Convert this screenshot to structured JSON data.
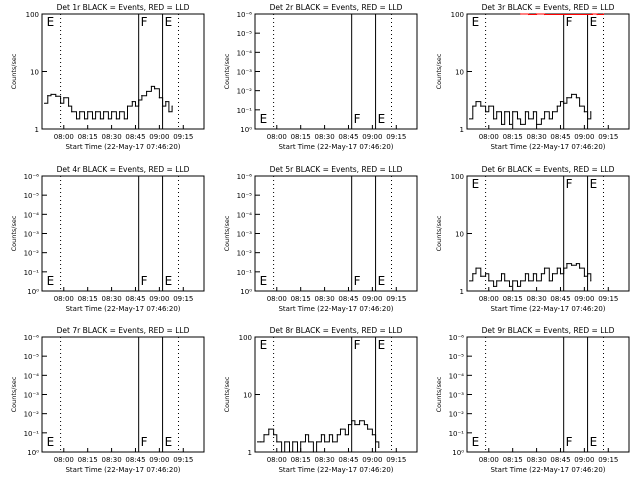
{
  "colors": {
    "background": "#ffffff",
    "events": "#000000",
    "lld": "#ff0000"
  },
  "chart_data": [
    {
      "type": "line",
      "title": "Det 1r BLACK = Events, RED = LLD",
      "xlabel": "Start Time (22-May-17 07:46:20)",
      "ylabel": "Counts/sec",
      "x_ticks": [
        "08:00",
        "08:15",
        "08:30",
        "08:45",
        "09:00",
        "09:15"
      ],
      "y_scale": "log",
      "y_tick_labels": [
        "1",
        "10",
        "100"
      ],
      "ylim": [
        1,
        100
      ],
      "markers": [
        {
          "label": "E",
          "at": "07:48"
        },
        {
          "label": "F",
          "at": "08:47"
        },
        {
          "label": "E",
          "at": "09:02"
        }
      ],
      "series": [
        {
          "color": "#000000",
          "x": [
            "07:48",
            "07:50",
            "07:52",
            "07:55",
            "07:58",
            "08:00",
            "08:03",
            "08:05",
            "08:08",
            "08:10",
            "08:13",
            "08:15",
            "08:18",
            "08:20",
            "08:23",
            "08:25",
            "08:28",
            "08:30",
            "08:33",
            "08:35",
            "08:38",
            "08:40",
            "08:43",
            "08:45",
            "08:47",
            "08:49",
            "08:52",
            "08:55",
            "08:57",
            "09:00",
            "09:02",
            "09:04",
            "09:06",
            "09:08"
          ],
          "y": [
            2.8,
            3.8,
            4.0,
            3.7,
            2.8,
            3.5,
            2.5,
            2.0,
            1.5,
            2.0,
            1.5,
            2.0,
            1.5,
            2.0,
            1.5,
            2.0,
            1.5,
            2.0,
            1.5,
            2.0,
            1.5,
            2.5,
            3.0,
            2.5,
            3.2,
            3.8,
            4.5,
            5.5,
            5.0,
            3.5,
            2.5,
            3.0,
            2.0,
            2.5
          ]
        }
      ]
    },
    {
      "type": "line",
      "title": "Det 2r BLACK = Events, RED = LLD",
      "xlabel": "Start Time (22-May-17 07:46:20)",
      "ylabel": "Counts/sec",
      "x_ticks": [
        "08:00",
        "08:15",
        "08:30",
        "08:45",
        "09:00",
        "09:15"
      ],
      "y_scale": "log",
      "y_tick_labels": [
        "10⁰",
        "10⁻¹",
        "10⁻²",
        "10⁻³",
        "10⁻⁴",
        "10⁻⁵",
        "10⁻⁶"
      ],
      "markers": [
        {
          "label": "E",
          "at": "07:48"
        },
        {
          "label": "F",
          "at": "08:47"
        },
        {
          "label": "E",
          "at": "09:02"
        }
      ],
      "series": []
    },
    {
      "type": "line",
      "title": "Det 3r BLACK = Events, RED = LLD",
      "xlabel": "Start Time (22-May-17 07:46:20)",
      "ylabel": "Counts/sec",
      "x_ticks": [
        "08:00",
        "08:15",
        "08:30",
        "08:45",
        "09:00",
        "09:15"
      ],
      "y_scale": "log",
      "y_tick_labels": [
        "1",
        "10",
        "100"
      ],
      "ylim": [
        1,
        100
      ],
      "markers": [
        {
          "label": "E",
          "at": "07:48"
        },
        {
          "label": "F",
          "at": "08:47"
        },
        {
          "label": "E",
          "at": "09:02"
        }
      ],
      "series": [
        {
          "color": "#000000",
          "x": [
            "07:48",
            "07:50",
            "07:52",
            "07:55",
            "07:58",
            "08:00",
            "08:03",
            "08:05",
            "08:08",
            "08:10",
            "08:13",
            "08:15",
            "08:18",
            "08:20",
            "08:23",
            "08:25",
            "08:28",
            "08:30",
            "08:33",
            "08:35",
            "08:38",
            "08:40",
            "08:43",
            "08:45",
            "08:47",
            "08:49",
            "08:52",
            "08:55",
            "08:57",
            "09:00",
            "09:02",
            "09:04"
          ],
          "y": [
            1.5,
            2.5,
            3.0,
            2.5,
            2.0,
            2.5,
            1.5,
            2.0,
            1.2,
            2.0,
            1.2,
            2.0,
            1.5,
            1.2,
            2.0,
            1.5,
            2.0,
            1.2,
            1.5,
            2.0,
            1.5,
            2.0,
            2.5,
            3.0,
            2.8,
            3.5,
            4.0,
            3.5,
            2.5,
            2.0,
            1.5,
            2.0
          ]
        },
        {
          "color": "#ff0000",
          "x": [
            "08:20",
            "08:25",
            "08:30",
            "08:35",
            "09:05",
            "09:08",
            "09:12"
          ],
          "y": [
            100,
            98,
            100,
            98,
            100,
            98,
            100
          ]
        }
      ]
    },
    {
      "type": "line",
      "title": "Det 4r BLACK = Events, RED = LLD",
      "xlabel": "Start Time (22-May-17 07:46:20)",
      "ylabel": "Counts/sec",
      "x_ticks": [
        "08:00",
        "08:15",
        "08:30",
        "08:45",
        "09:00",
        "09:15"
      ],
      "y_scale": "log",
      "y_tick_labels": [
        "10⁰",
        "10⁻¹",
        "10⁻²",
        "10⁻³",
        "10⁻⁴",
        "10⁻⁵",
        "10⁻⁶"
      ],
      "markers": [
        {
          "label": "E",
          "at": "07:48"
        },
        {
          "label": "F",
          "at": "08:47"
        },
        {
          "label": "E",
          "at": "09:02"
        }
      ],
      "series": []
    },
    {
      "type": "line",
      "title": "Det 5r BLACK = Events, RED = LLD",
      "xlabel": "Start Time (22-May-17 07:46:20)",
      "ylabel": "Counts/sec",
      "x_ticks": [
        "08:00",
        "08:15",
        "08:30",
        "08:45",
        "09:00",
        "09:15"
      ],
      "y_scale": "log",
      "y_tick_labels": [
        "10⁰",
        "10⁻¹",
        "10⁻²",
        "10⁻³",
        "10⁻⁴",
        "10⁻⁵",
        "10⁻⁶"
      ],
      "markers": [
        {
          "label": "E",
          "at": "07:48"
        },
        {
          "label": "F",
          "at": "08:47"
        },
        {
          "label": "E",
          "at": "09:02"
        }
      ],
      "series": []
    },
    {
      "type": "line",
      "title": "Det 6r BLACK = Events, RED = LLD",
      "xlabel": "Start Time (22-May-17 07:46:20)",
      "ylabel": "Counts/sec",
      "x_ticks": [
        "08:00",
        "08:15",
        "08:30",
        "08:45",
        "09:00",
        "09:15"
      ],
      "y_scale": "log",
      "y_tick_labels": [
        "1",
        "10",
        "100"
      ],
      "ylim": [
        1,
        100
      ],
      "markers": [
        {
          "label": "E",
          "at": "07:48"
        },
        {
          "label": "F",
          "at": "08:47"
        },
        {
          "label": "E",
          "at": "09:02"
        }
      ],
      "series": [
        {
          "color": "#000000",
          "x": [
            "07:48",
            "07:50",
            "07:52",
            "07:55",
            "07:58",
            "08:00",
            "08:03",
            "08:05",
            "08:08",
            "08:10",
            "08:13",
            "08:15",
            "08:18",
            "08:20",
            "08:23",
            "08:25",
            "08:28",
            "08:30",
            "08:33",
            "08:35",
            "08:38",
            "08:40",
            "08:43",
            "08:45",
            "08:47",
            "08:49",
            "08:52",
            "08:55",
            "08:57",
            "09:00",
            "09:02",
            "09:04"
          ],
          "y": [
            1.5,
            2.0,
            2.5,
            1.8,
            2.0,
            1.5,
            1.2,
            1.5,
            2.0,
            1.5,
            1.2,
            1.5,
            1.2,
            1.5,
            2.0,
            1.5,
            2.0,
            1.5,
            2.0,
            2.5,
            1.5,
            2.0,
            2.5,
            2.0,
            2.5,
            3.0,
            2.8,
            3.0,
            2.5,
            1.8,
            2.0,
            1.5
          ]
        }
      ]
    },
    {
      "type": "line",
      "title": "Det 7r BLACK = Events, RED = LLD",
      "xlabel": "Start Time (22-May-17 07:46:20)",
      "ylabel": "Counts/sec",
      "x_ticks": [
        "08:00",
        "08:15",
        "08:30",
        "08:45",
        "09:00",
        "09:15"
      ],
      "y_scale": "log",
      "y_tick_labels": [
        "10⁰",
        "10⁻¹",
        "10⁻²",
        "10⁻³",
        "10⁻⁴",
        "10⁻⁵",
        "10⁻⁶"
      ],
      "markers": [
        {
          "label": "E",
          "at": "07:48"
        },
        {
          "label": "F",
          "at": "08:47"
        },
        {
          "label": "E",
          "at": "09:02"
        }
      ],
      "series": []
    },
    {
      "type": "line",
      "title": "Det 8r BLACK = Events, RED = LLD",
      "xlabel": "Start Time (22-May-17 07:46:20)",
      "ylabel": "Counts/sec",
      "x_ticks": [
        "08:00",
        "08:15",
        "08:30",
        "08:45",
        "09:00",
        "09:15"
      ],
      "y_scale": "log",
      "y_tick_labels": [
        "1",
        "10",
        "100"
      ],
      "ylim": [
        1,
        100
      ],
      "markers": [
        {
          "label": "E",
          "at": "07:48"
        },
        {
          "label": "F",
          "at": "08:47"
        },
        {
          "label": "E",
          "at": "09:02"
        }
      ],
      "series": [
        {
          "color": "#000000",
          "x": [
            "07:48",
            "07:50",
            "07:52",
            "07:55",
            "07:58",
            "08:00",
            "08:03",
            "08:05",
            "08:08",
            "08:10",
            "08:13",
            "08:15",
            "08:18",
            "08:20",
            "08:23",
            "08:25",
            "08:28",
            "08:30",
            "08:33",
            "08:35",
            "08:38",
            "08:40",
            "08:43",
            "08:45",
            "08:47",
            "08:49",
            "08:52",
            "08:55",
            "08:57",
            "09:00",
            "09:02",
            "09:04"
          ],
          "y": [
            1.5,
            1.5,
            2.0,
            2.5,
            2.0,
            1.5,
            1.0,
            1.5,
            1.0,
            1.5,
            1.0,
            1.5,
            2.0,
            1.5,
            1.0,
            1.5,
            2.0,
            1.5,
            2.0,
            1.5,
            2.0,
            2.5,
            2.0,
            3.0,
            3.5,
            3.0,
            3.5,
            3.0,
            2.5,
            2.0,
            1.5,
            1.2
          ]
        }
      ]
    },
    {
      "type": "line",
      "title": "Det 9r BLACK = Events, RED = LLD",
      "xlabel": "Start Time (22-May-17 07:46:20)",
      "ylabel": "Counts/sec",
      "x_ticks": [
        "08:00",
        "08:15",
        "08:30",
        "08:45",
        "09:00",
        "09:15"
      ],
      "y_scale": "log",
      "y_tick_labels": [
        "10⁰",
        "10⁻¹",
        "10⁻²",
        "10⁻³",
        "10⁻⁴",
        "10⁻⁵",
        "10⁻⁶"
      ],
      "markers": [
        {
          "label": "E",
          "at": "07:48"
        },
        {
          "label": "F",
          "at": "08:47"
        },
        {
          "label": "E",
          "at": "09:02"
        }
      ],
      "series": []
    }
  ]
}
